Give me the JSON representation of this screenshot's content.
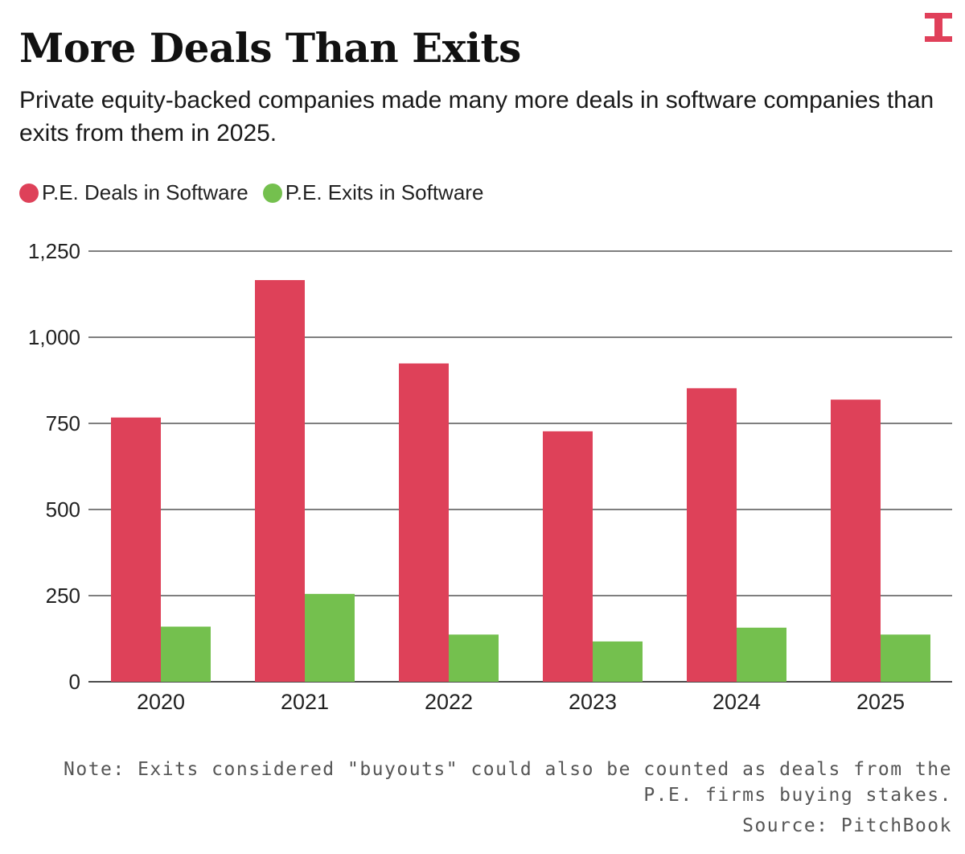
{
  "header": {
    "title": "More Deals Than Exits",
    "subtitle": "Private equity-backed companies made many more deals in software companies than exits from them in 2025.",
    "logo_icon": "t-logo-icon",
    "logo_color": "#e0405a"
  },
  "colors": {
    "deals": "#de4159",
    "exits": "#74c04e",
    "gridline": "#333333",
    "text": "#222222"
  },
  "chart_data": {
    "type": "bar",
    "categories": [
      "2020",
      "2021",
      "2022",
      "2023",
      "2024",
      "2025"
    ],
    "series": [
      {
        "name": "P.E. Deals in Software",
        "values": [
          767,
          1166,
          924,
          727,
          852,
          819
        ]
      },
      {
        "name": "P.E. Exits in Software",
        "values": [
          160,
          255,
          137,
          117,
          157,
          137
        ]
      }
    ],
    "yticks": [
      0,
      250,
      500,
      750,
      1000,
      1250
    ],
    "ytick_labels": [
      "0",
      "250",
      "500",
      "750",
      "1,000",
      "1,250"
    ],
    "ylim": [
      0,
      1250
    ],
    "grid": true,
    "legend_position": "top-left",
    "title": "More Deals Than Exits",
    "xlabel": "",
    "ylabel": ""
  },
  "footer": {
    "note": "Note: Exits considered \"buyouts\" could also be counted as deals from the P.E. firms buying stakes.",
    "source": "Source: PitchBook"
  }
}
